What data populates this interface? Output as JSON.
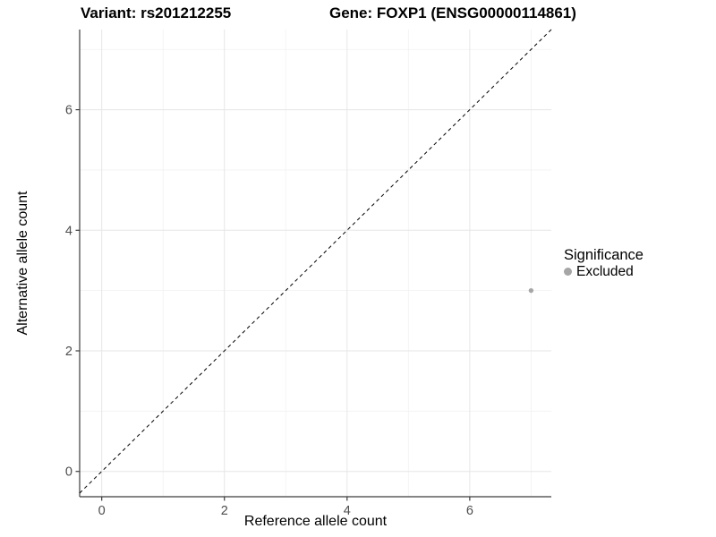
{
  "chart_data": {
    "type": "scatter",
    "titles": [
      "Variant: rs201212255",
      "Gene: FOXP1 (ENSG00000114861)"
    ],
    "xlabel": "Reference allele count",
    "ylabel": "Alternative allele count",
    "xlim": [
      -0.36,
      7.33
    ],
    "ylim": [
      -0.42,
      7.33
    ],
    "x_major_ticks": [
      0,
      2,
      4,
      6
    ],
    "y_major_ticks": [
      0,
      2,
      4,
      6
    ],
    "x_minor_gridlines": [
      1,
      3,
      5,
      7
    ],
    "y_minor_gridlines": [
      1,
      3,
      5,
      7
    ],
    "grid": true,
    "identity_line": {
      "equation": "y = x",
      "style": "dashed",
      "color": "#000000"
    },
    "series": [
      {
        "name": "Excluded",
        "color": "#a6a6a6",
        "points": [
          [
            7,
            3
          ]
        ]
      }
    ],
    "legend": {
      "title": "Significance",
      "position": "right",
      "entries": [
        {
          "label": "Excluded",
          "color": "#a6a6a6"
        }
      ]
    },
    "style": {
      "major_grid_color": "#e6e6e6",
      "minor_grid_color": "#f1f1f1",
      "axis_line_color": "#3c3c3c",
      "tick_label_color": "#4d4d4d"
    }
  }
}
